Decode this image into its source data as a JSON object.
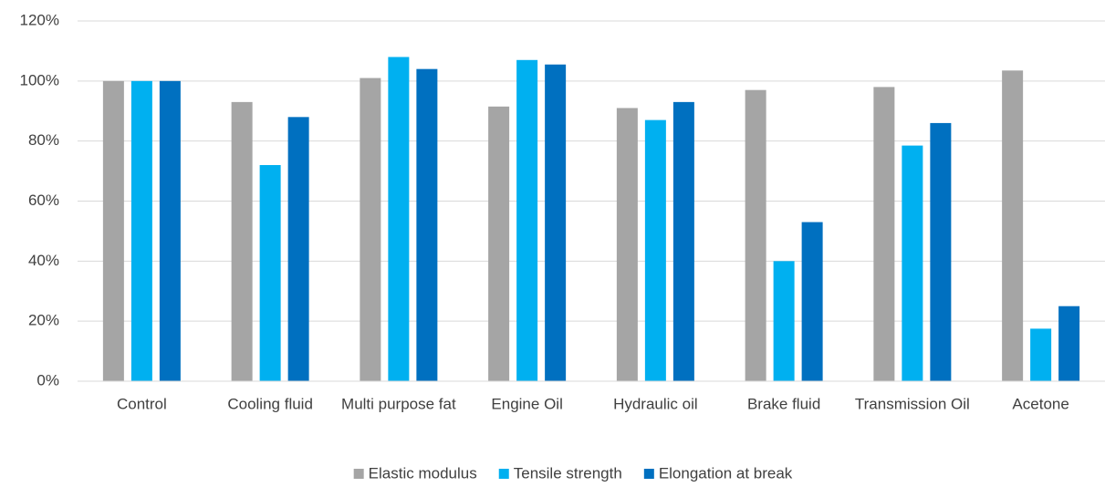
{
  "chart_data": {
    "type": "bar",
    "categories": [
      "Control",
      "Cooling fluid",
      "Multi purpose fat",
      "Engine Oil",
      "Hydraulic oil",
      "Brake fluid",
      "Transmission Oil",
      "Acetone"
    ],
    "series": [
      {
        "name": "Elastic modulus",
        "color": "#a5a5a5",
        "values": [
          100,
          93,
          101,
          91.5,
          91,
          97,
          98,
          103.5
        ]
      },
      {
        "name": "Tensile strength",
        "color": "#00b0f0",
        "values": [
          100,
          72,
          108,
          107,
          87,
          40,
          78.5,
          17.5
        ]
      },
      {
        "name": "Elongation at break",
        "color": "#0070c0",
        "values": [
          100,
          88,
          104,
          105.5,
          93,
          53,
          86,
          25
        ]
      }
    ],
    "ylim": [
      0,
      120
    ],
    "yticks": [
      {
        "value": 0,
        "label": "0%"
      },
      {
        "value": 20,
        "label": "20%"
      },
      {
        "value": 40,
        "label": "40%"
      },
      {
        "value": 60,
        "label": "60%"
      },
      {
        "value": 80,
        "label": "80%"
      },
      {
        "value": 100,
        "label": "100%"
      },
      {
        "value": 120,
        "label": "120%"
      }
    ],
    "grid": true,
    "legend": "bottom"
  }
}
